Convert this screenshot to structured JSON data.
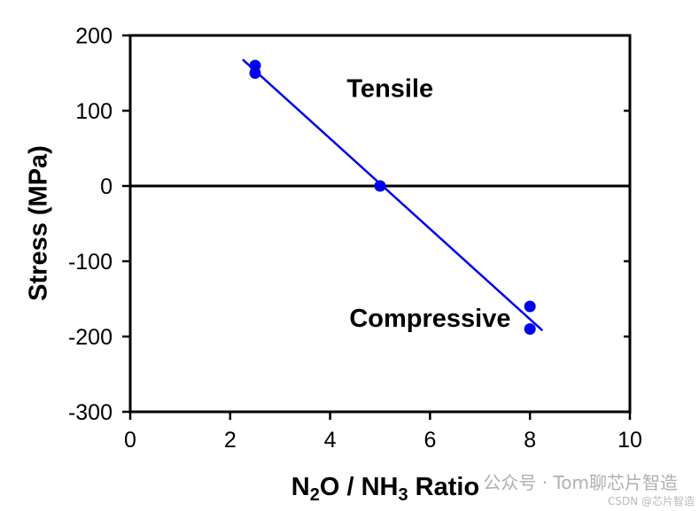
{
  "chart_data": {
    "type": "scatter",
    "xlabel_parts": [
      "N",
      "2",
      "O / NH",
      "3",
      " Ratio"
    ],
    "ylabel": "Stress (MPa)",
    "xlim": [
      0,
      10
    ],
    "ylim": [
      -300,
      200
    ],
    "x_ticks": [
      0,
      2,
      4,
      6,
      8,
      10
    ],
    "y_ticks": [
      200,
      100,
      0,
      -100,
      -200,
      -300
    ],
    "series": [
      {
        "x": [
          2.5,
          2.5,
          5,
          8,
          8
        ],
        "y": [
          160,
          150,
          0,
          -160,
          -190
        ],
        "color": "#0000ee"
      }
    ],
    "fit_line": {
      "x": [
        2.25,
        8.25
      ],
      "y": [
        168,
        -192
      ],
      "color": "#0000ee"
    },
    "zero_line": true,
    "annotations": [
      {
        "text": "Tensile",
        "x": 5.2,
        "y": 118
      },
      {
        "text": "Compressive",
        "x": 6.0,
        "y": -187
      }
    ],
    "grid": false,
    "legend": "none"
  },
  "watermark": {
    "main": "公众号 · Tom聊芯片智造",
    "sub": "CSDN @芯片智造"
  }
}
